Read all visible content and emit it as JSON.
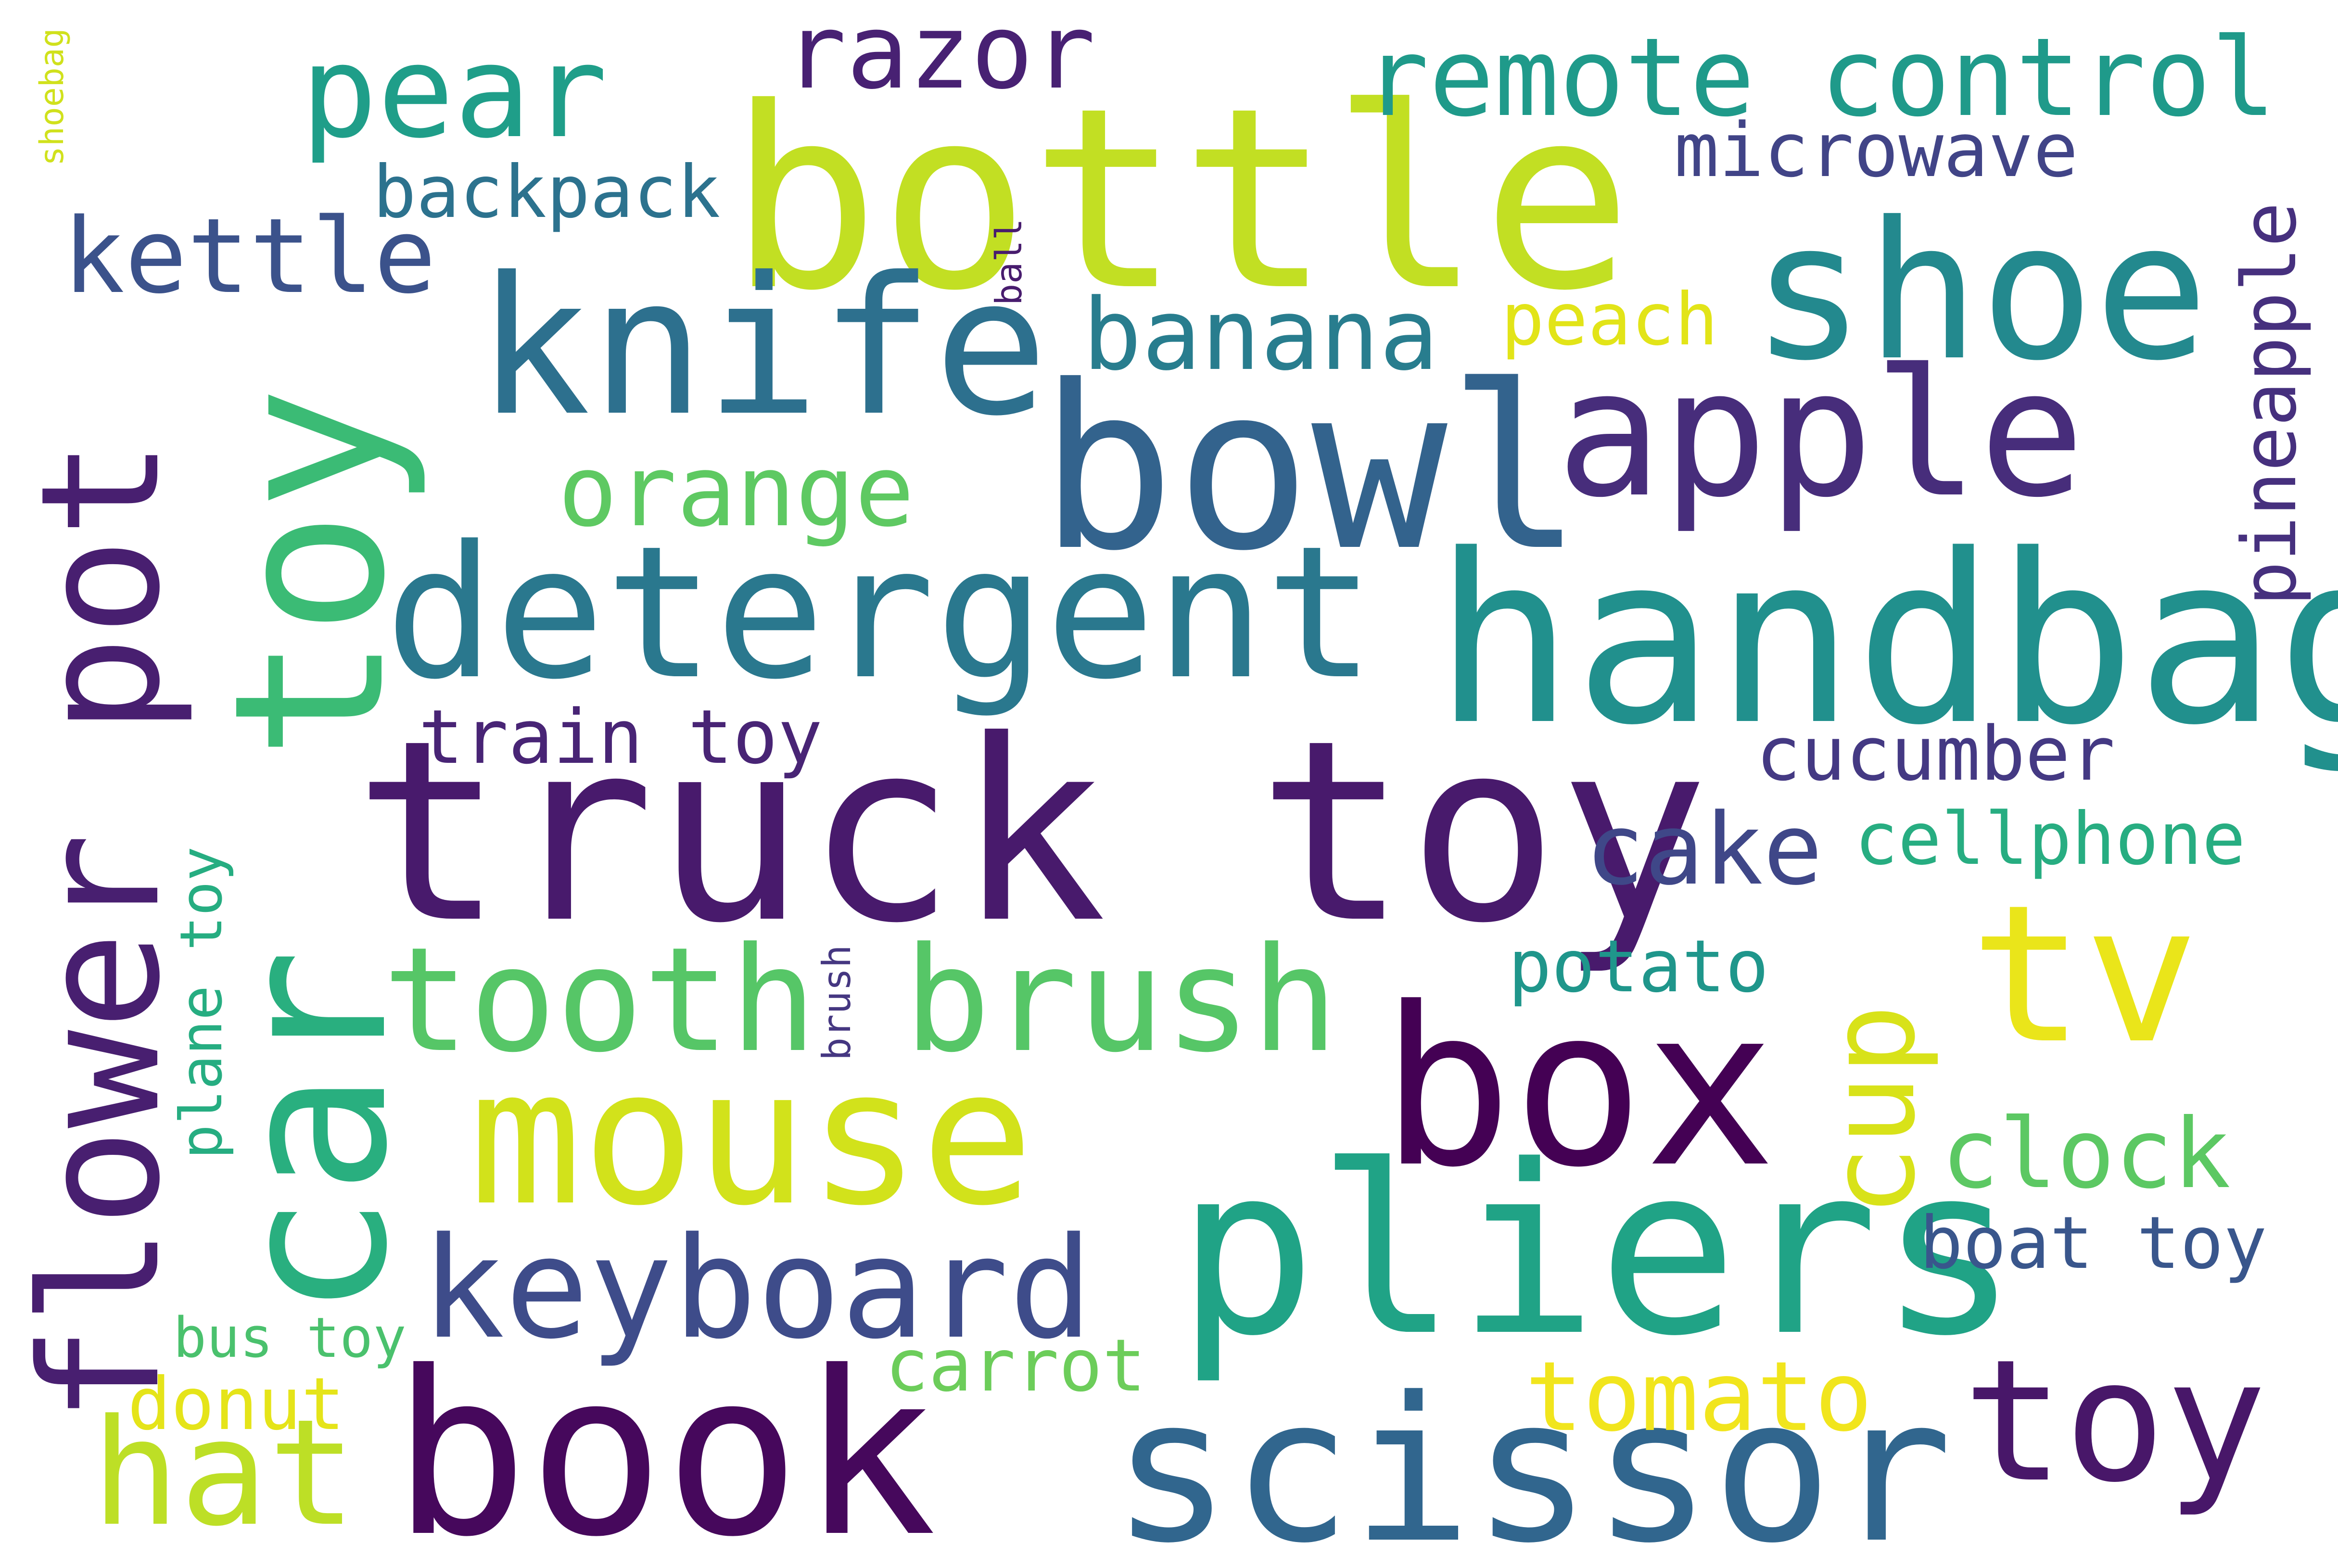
{
  "words": [
    {
      "text": "bottle",
      "color": "#c2df23",
      "rotated": false
    },
    {
      "text": "truck toy",
      "color": "#481a6c",
      "rotated": false
    },
    {
      "text": "handbag",
      "color": "#21908d",
      "rotated": false
    },
    {
      "text": "detergent",
      "color": "#2a788e",
      "rotated": false
    },
    {
      "text": "book",
      "color": "#46085c",
      "rotated": false
    },
    {
      "text": "scissor",
      "color": "#31668e",
      "rotated": false
    },
    {
      "text": "pliers",
      "color": "#20a386",
      "rotated": false
    },
    {
      "text": "bowl",
      "color": "#33638d",
      "rotated": false
    },
    {
      "text": "box",
      "color": "#440154",
      "rotated": false
    },
    {
      "text": "mouse",
      "color": "#d2e21b",
      "rotated": false
    },
    {
      "text": "knife",
      "color": "#2d708e",
      "rotated": false
    },
    {
      "text": "shoe",
      "color": "#23898e",
      "rotated": false
    },
    {
      "text": "apple",
      "color": "#472d7b",
      "rotated": false
    },
    {
      "text": "tooth brush",
      "color": "#56c667",
      "rotated": false
    },
    {
      "text": "keyboard",
      "color": "#3e4c8a",
      "rotated": false
    },
    {
      "text": "toy",
      "color": "#481769",
      "rotated": false
    },
    {
      "text": "tv",
      "color": "#eae51a",
      "rotated": false
    },
    {
      "text": "hat",
      "color": "#bddf26",
      "rotated": false
    },
    {
      "text": "pear",
      "color": "#1f9e89",
      "rotated": false
    },
    {
      "text": "car",
      "color": "#29af7f",
      "rotated": true
    },
    {
      "text": "toy",
      "color": "#3bbb75",
      "rotated": true
    },
    {
      "text": "flower pot",
      "color": "#481f70",
      "rotated": true
    },
    {
      "text": "cup",
      "color": "#d8e219",
      "rotated": true
    },
    {
      "text": "remote control",
      "color": "#1f9a8a",
      "rotated": false
    },
    {
      "text": "razor",
      "color": "#482173",
      "rotated": false
    },
    {
      "text": "microwave",
      "color": "#414487",
      "rotated": false
    },
    {
      "text": "kettle",
      "color": "#3b528b",
      "rotated": false
    },
    {
      "text": "banana",
      "color": "#287d8e",
      "rotated": false
    },
    {
      "text": "orange",
      "color": "#5ec962",
      "rotated": false
    },
    {
      "text": "peach",
      "color": "#e2e418",
      "rotated": false
    },
    {
      "text": "pineapple",
      "color": "#46307e",
      "rotated": true
    },
    {
      "text": "cucumber",
      "color": "#443983",
      "rotated": false
    },
    {
      "text": "cake",
      "color": "#3f4788",
      "rotated": false
    },
    {
      "text": "cellphone",
      "color": "#27ad81",
      "rotated": false
    },
    {
      "text": "train toy",
      "color": "#482475",
      "rotated": false
    },
    {
      "text": "potato",
      "color": "#1f968b",
      "rotated": false
    },
    {
      "text": "clock",
      "color": "#5cc863",
      "rotated": false
    },
    {
      "text": "boat toy",
      "color": "#39568c",
      "rotated": false
    },
    {
      "text": "tomato",
      "color": "#f1e51d",
      "rotated": false
    },
    {
      "text": "carrot",
      "color": "#6ccd5a",
      "rotated": false
    },
    {
      "text": "backpack",
      "color": "#2c728e",
      "rotated": false
    },
    {
      "text": "plane toy",
      "color": "#26ad81",
      "rotated": true
    },
    {
      "text": "bus toy",
      "color": "#4ac16d",
      "rotated": false
    },
    {
      "text": "donut",
      "color": "#e5e419",
      "rotated": false
    },
    {
      "text": "brush",
      "color": "#453781",
      "rotated": true
    },
    {
      "text": "ball",
      "color": "#481c6e",
      "rotated": true
    },
    {
      "text": "shoebag",
      "color": "#d0e11c",
      "rotated": true
    }
  ]
}
